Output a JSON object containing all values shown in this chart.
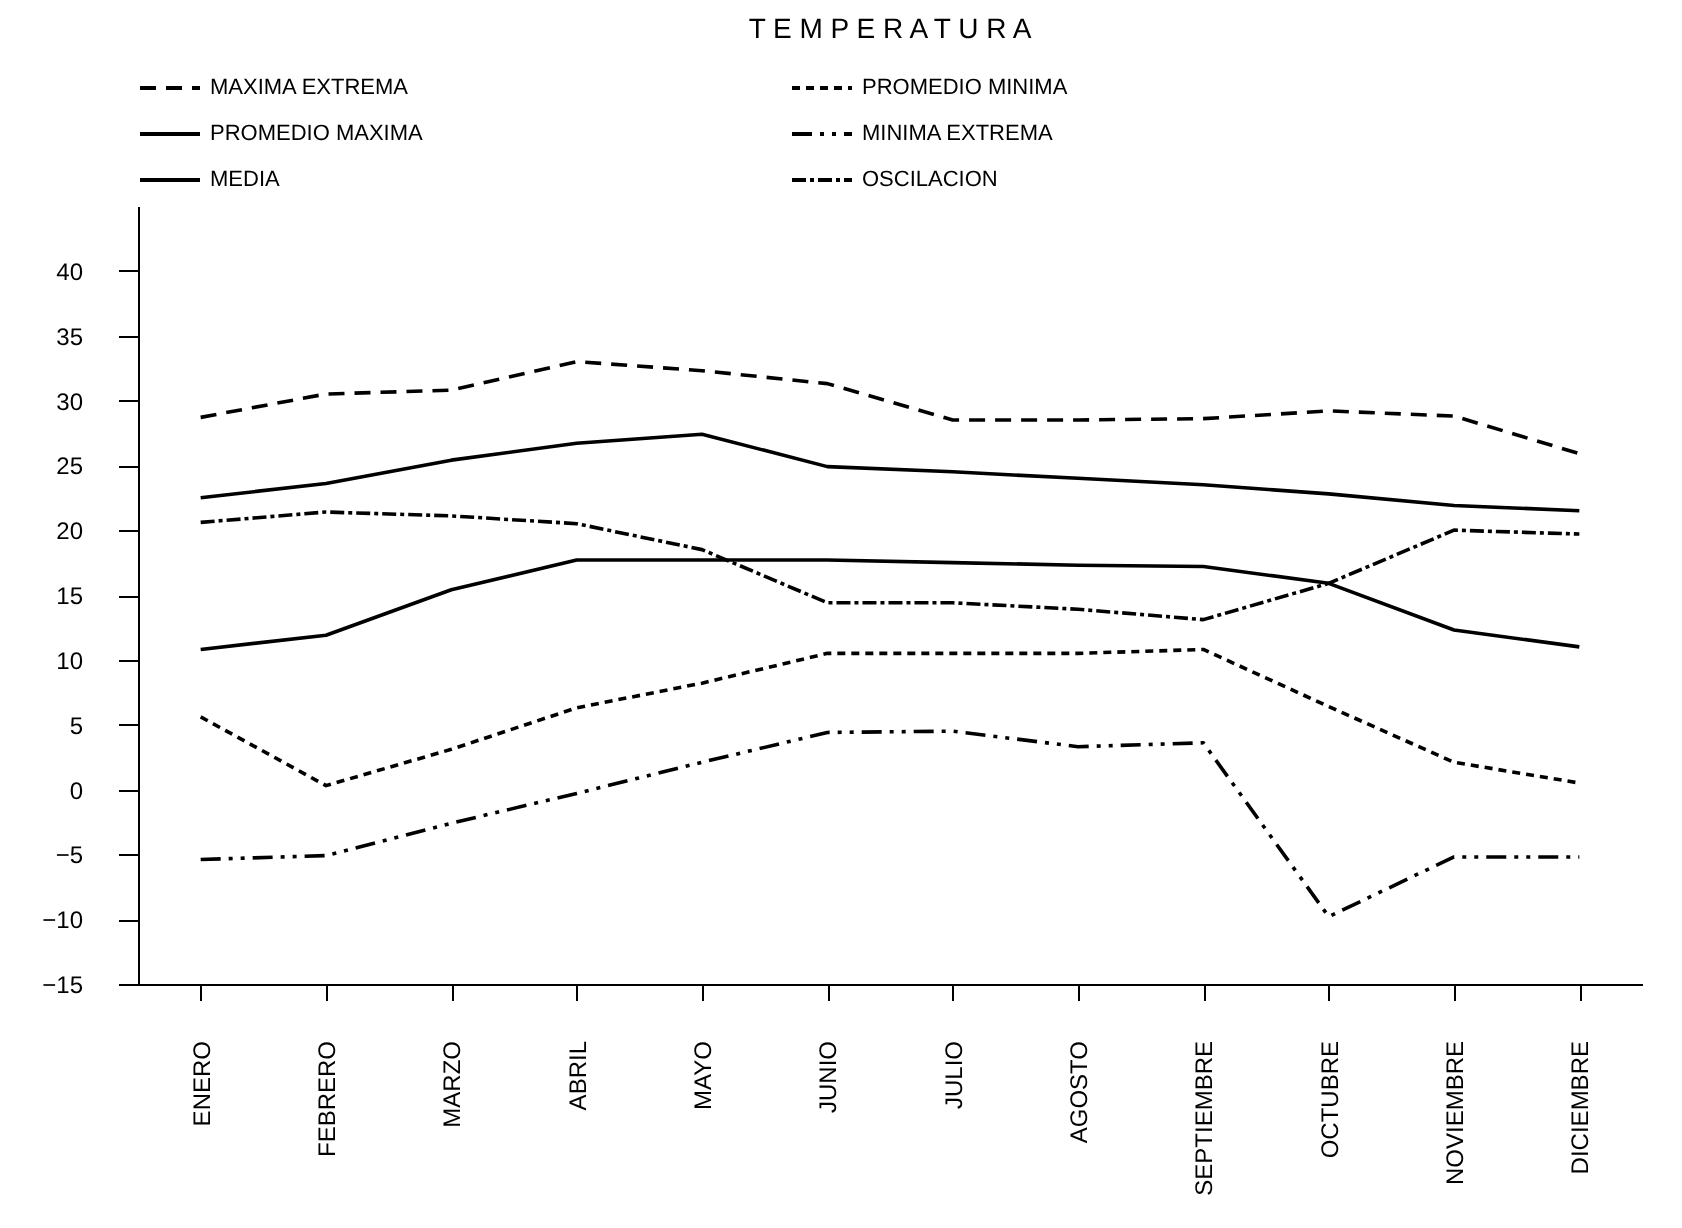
{
  "chart_data": {
    "type": "line",
    "title": "T E M P E R A T U R A",
    "categories": [
      "ENERO",
      "FEBRERO",
      "MARZO",
      "ABRIL",
      "MAYO",
      "JUNIO",
      "JULIO",
      "AGOSTO",
      "SEPTIEMBRE",
      "OCTUBRE",
      "NOVIEMBRE",
      "DICIEMBRE"
    ],
    "series": [
      {
        "name": "MAXIMA EXTREMA",
        "color": "#000000",
        "line_style": "dashed",
        "values": [
          28.7,
          30.5,
          30.8,
          33,
          32.3,
          31.3,
          28.5,
          28.5,
          28.6,
          29.2,
          28.8,
          25.9
        ]
      },
      {
        "name": "PROMEDIO MAXIMA",
        "color": "#000000",
        "line_style": "solid",
        "values": [
          22.5,
          23.6,
          25.4,
          26.7,
          27.4,
          24.9,
          24.5,
          24.0,
          23.5,
          22.8,
          21.9,
          21.5
        ]
      },
      {
        "name": "MEDIA",
        "color": "#000000",
        "line_style": "solid",
        "values": [
          10.8,
          11.9,
          15.4,
          17.7,
          17.7,
          17.7,
          17.5,
          17.3,
          17.2,
          15.9,
          12.3,
          11.0
        ]
      },
      {
        "name": "PROMEDIO MINIMA",
        "color": "#000000",
        "line_style": "dashed",
        "values": [
          5.6,
          0.3,
          3.1,
          6.3,
          8.2,
          10.5,
          10.5,
          10.5,
          10.8,
          6.4,
          2.1,
          0.5
        ]
      },
      {
        "name": "MINIMA EXTREMA",
        "color": "#000000",
        "line_style": "dashed",
        "values": [
          -5.4,
          -5.1,
          -2.6,
          -0.3,
          2.1,
          4.4,
          4.5,
          3.3,
          3.6,
          -9.8,
          -5.2,
          -5.2
        ]
      },
      {
        "name": "OSCILACION",
        "color": "#000000",
        "line_style": "dashed",
        "values": [
          20.6,
          21.4,
          21.1,
          20.5,
          18.5,
          14.4,
          14.4,
          13.9,
          13.1,
          15.9,
          20.0,
          19.7
        ]
      }
    ],
    "ylim": [
      -15,
      45
    ],
    "yticks": [
      -15,
      -10,
      -5,
      0,
      5,
      10,
      15,
      20,
      25,
      30,
      35,
      40
    ],
    "grid": false,
    "legend": "top",
    "marker": "none"
  }
}
